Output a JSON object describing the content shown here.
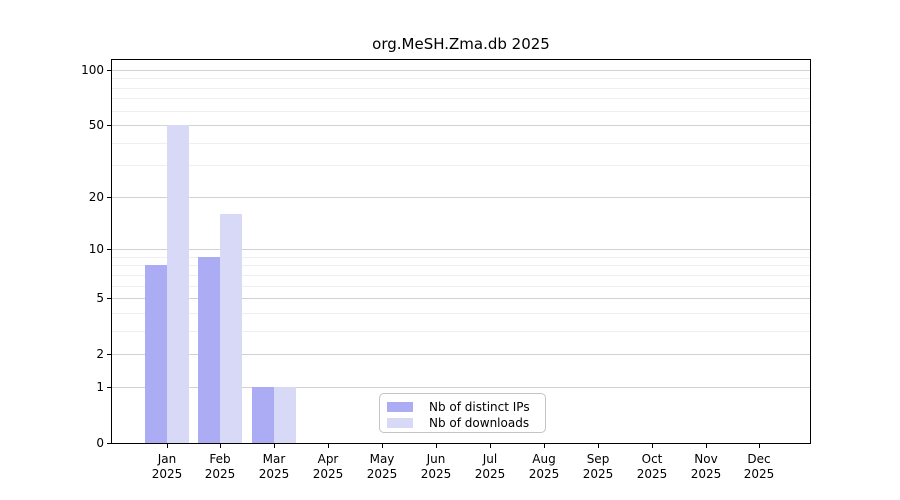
{
  "title": "org.MeSH.Zma.db 2025",
  "chart_data": {
    "type": "bar",
    "title": "org.MeSH.Zma.db 2025",
    "categories": [
      "Jan",
      "Feb",
      "Mar",
      "Apr",
      "May",
      "Jun",
      "Jul",
      "Aug",
      "Sep",
      "Oct",
      "Nov",
      "Dec"
    ],
    "year_label": "2025",
    "series": [
      {
        "name": "Nb of distinct IPs",
        "key": "ips",
        "color": "#acacf4",
        "values": [
          8,
          9,
          1,
          0,
          0,
          0,
          0,
          0,
          0,
          0,
          0,
          0
        ]
      },
      {
        "name": "Nb of downloads",
        "key": "downloads",
        "color": "#d8d8f7",
        "values": [
          50,
          16,
          1,
          0,
          0,
          0,
          0,
          0,
          0,
          0,
          0,
          0
        ]
      }
    ],
    "xlabel": "",
    "ylabel": "",
    "yscale": "log1p",
    "ylim": [
      0,
      113
    ],
    "yticks_major": [
      0,
      1,
      2,
      5,
      10,
      20,
      50,
      100
    ],
    "yticks_minor": [
      3,
      4,
      6,
      7,
      8,
      9,
      30,
      40,
      60,
      70,
      80,
      90
    ],
    "grid": true,
    "legend_position": "lower-center"
  },
  "colors": {
    "grid_major": "#d2d2d2",
    "grid_minor": "#efefef",
    "spine": "#000000",
    "tick": "#000000"
  }
}
